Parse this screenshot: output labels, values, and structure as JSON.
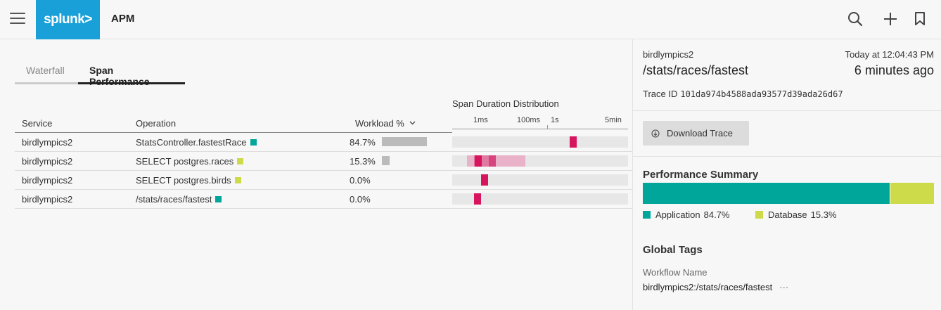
{
  "header": {
    "logo_text": "splunk>",
    "app_title": "APM",
    "icons": [
      "menu-icon",
      "search-icon",
      "plus-icon",
      "bookmark-icon"
    ]
  },
  "tabs": [
    {
      "label": "Waterfall",
      "active": false
    },
    {
      "label": "Span Performance",
      "active": true
    }
  ],
  "table": {
    "columns": {
      "service": "Service",
      "operation": "Operation",
      "workload": "Workload %",
      "distribution": "Span Duration Distribution"
    },
    "axis_labels": [
      "1ms",
      "100ms",
      "1s",
      "5min"
    ],
    "rows": [
      {
        "service": "birdlympics2",
        "operation": "StatsController.fastestRace",
        "workload": "84.7%",
        "workload_value": 84.7,
        "marker_color": "#00a69a"
      },
      {
        "service": "birdlympics2",
        "operation": "SELECT postgres.races",
        "workload": "15.3%",
        "workload_value": 15.3,
        "marker_color": "#cddb4a"
      },
      {
        "service": "birdlympics2",
        "operation": "SELECT postgres.birds",
        "workload": "0.0%",
        "workload_value": 0.0,
        "marker_color": "#cddb4a"
      },
      {
        "service": "birdlympics2",
        "operation": "/stats/races/fastest",
        "workload": "0.0%",
        "workload_value": 0.0,
        "marker_color": "#00a69a"
      }
    ]
  },
  "sidebar": {
    "service": "birdlympics2",
    "operation": "/stats/races/fastest",
    "time": "Today at 12:04:43 PM",
    "ago": "6 minutes ago",
    "trace_id_label": "Trace ID",
    "trace_id": "101da974b4588ada93577d39ada26d67",
    "download_label": "Download Trace",
    "perf_title": "Performance Summary",
    "perf": [
      {
        "name": "Application",
        "pct": "84.7%",
        "value": 84.7,
        "color": "#00a69a"
      },
      {
        "name": "Database",
        "pct": "15.3%",
        "value": 15.3,
        "color": "#cddb4a"
      }
    ],
    "tags_title": "Global Tags",
    "workflow_label": "Workflow Name",
    "workflow_value": "birdlympics2:/stats/races/fastest",
    "more": "···"
  },
  "colors": {
    "accent": "#1aa0d8",
    "span_mark": "#d6155e",
    "span_mark_light": "#e9a6c1"
  }
}
